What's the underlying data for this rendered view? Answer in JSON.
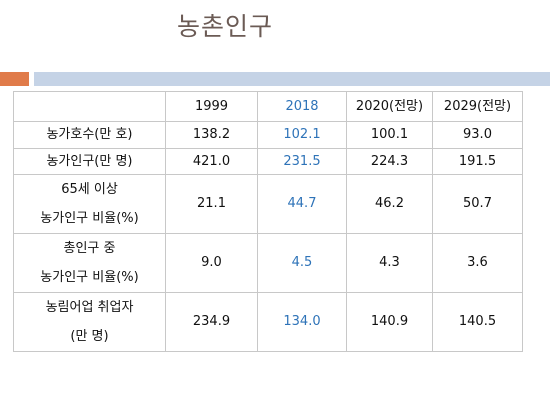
{
  "title": "농촌인구",
  "table": {
    "headers": [
      "",
      "1999",
      "2018",
      "2020(전망)",
      "2029(전망)"
    ],
    "rows": [
      {
        "label": [
          "농가호수(만 호)"
        ],
        "values": [
          "138.2",
          "102.1",
          "100.1",
          "93.0"
        ]
      },
      {
        "label": [
          "농가인구(만 명)"
        ],
        "values": [
          "421.0",
          "231.5",
          "224.3",
          "191.5"
        ]
      },
      {
        "label": [
          "65세 이상",
          "농가인구 비율(%)"
        ],
        "values": [
          "21.1",
          "44.7",
          "46.2",
          "50.7"
        ]
      },
      {
        "label": [
          "총인구 중",
          "농가인구 비율(%)"
        ],
        "values": [
          "9.0",
          "4.5",
          "4.3",
          "3.6"
        ]
      },
      {
        "label": [
          "농림어업 취업자",
          "(만 명)"
        ],
        "values": [
          "234.9",
          "134.0",
          "140.9",
          "140.5"
        ]
      }
    ]
  },
  "colors": {
    "highlight_column": "#2e73b8",
    "title": "#6b5b55",
    "accent": "#e07b4a",
    "rule": "#c5d3e6"
  }
}
